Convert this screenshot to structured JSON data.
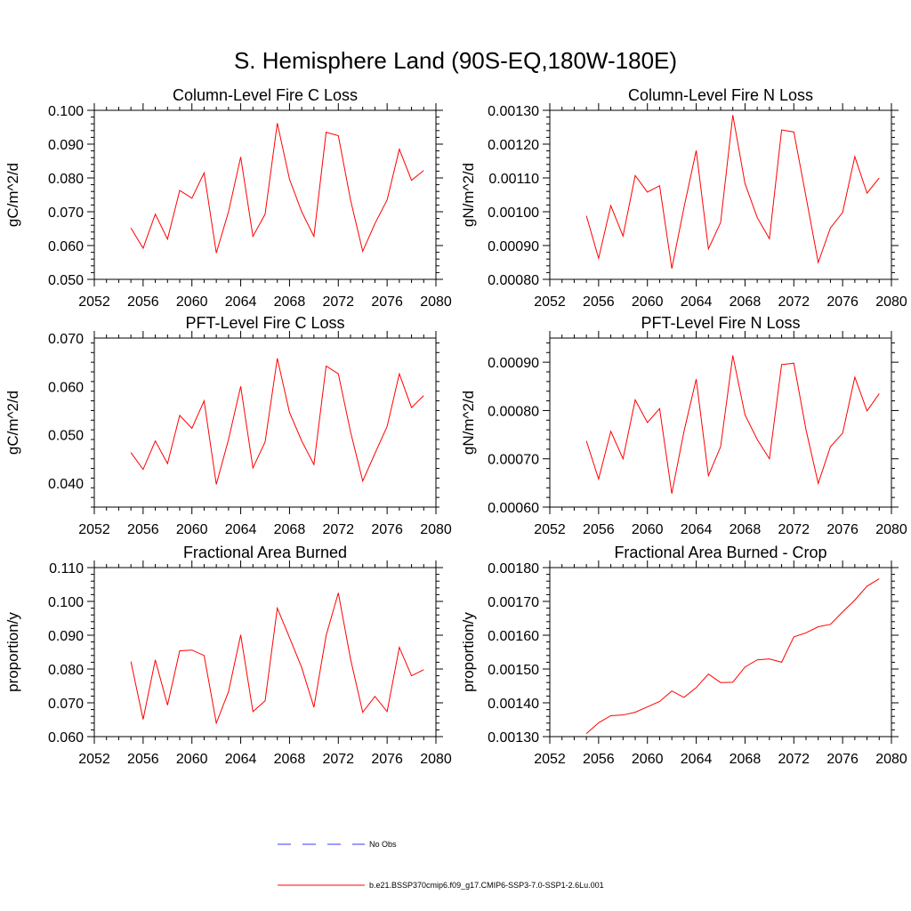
{
  "title": "S. Hemisphere Land (90S-EQ,180W-180E)",
  "colors": {
    "model": "#ff0000",
    "obs": "#3a3aff",
    "axis": "#000000"
  },
  "legend": [
    {
      "label": "No Obs",
      "style": "dashed",
      "color": "#3a3aff"
    },
    {
      "label": "b.e21.BSSP370cmip6.f09_g17.CMIP6-SSP3-7.0-SSP1-2.6Lu.001",
      "style": "solid",
      "color": "#ff0000"
    }
  ],
  "chart_data": [
    {
      "type": "line",
      "title": "Column-Level Fire C Loss",
      "ylabel": "gC/m^2/d",
      "xlim": [
        2052,
        2080
      ],
      "ylim": [
        0.05,
        0.1
      ],
      "xticks": [
        2052,
        2056,
        2060,
        2064,
        2068,
        2072,
        2076,
        2080
      ],
      "yticks": [
        0.05,
        0.06,
        0.07,
        0.08,
        0.09,
        0.1
      ],
      "ytick_labels": [
        "0.050",
        "0.060",
        "0.070",
        "0.080",
        "0.090",
        "0.100"
      ],
      "x": [
        2055,
        2056,
        2057,
        2058,
        2059,
        2060,
        2061,
        2062,
        2063,
        2064,
        2065,
        2066,
        2067,
        2068,
        2069,
        2070,
        2071,
        2072,
        2073,
        2074,
        2075,
        2076,
        2077,
        2078,
        2079
      ],
      "series": [
        {
          "values": [
            0.0652,
            0.0592,
            0.0693,
            0.0619,
            0.0763,
            0.074,
            0.0815,
            0.0578,
            0.07,
            0.0862,
            0.0627,
            0.0693,
            0.0962,
            0.0796,
            0.07,
            0.0627,
            0.0935,
            0.0925,
            0.0735,
            0.0583,
            0.0665,
            0.0735,
            0.0885,
            0.0793,
            0.0822
          ]
        }
      ]
    },
    {
      "type": "line",
      "title": "Column-Level Fire N Loss",
      "ylabel": "gN/m^2/d",
      "xlim": [
        2052,
        2080
      ],
      "ylim": [
        0.0008,
        0.0013
      ],
      "xticks": [
        2052,
        2056,
        2060,
        2064,
        2068,
        2072,
        2076,
        2080
      ],
      "yticks": [
        0.0008,
        0.0009,
        0.001,
        0.0011,
        0.0012,
        0.0013
      ],
      "ytick_labels": [
        "0.00080",
        "0.00090",
        "0.00100",
        "0.00110",
        "0.00120",
        "0.00130"
      ],
      "x": [
        2055,
        2056,
        2057,
        2058,
        2059,
        2060,
        2061,
        2062,
        2063,
        2064,
        2065,
        2066,
        2067,
        2068,
        2069,
        2070,
        2071,
        2072,
        2073,
        2074,
        2075,
        2076,
        2077,
        2078,
        2079
      ],
      "series": [
        {
          "values": [
            0.000988,
            0.000862,
            0.001018,
            0.000928,
            0.001107,
            0.001058,
            0.001077,
            0.000832,
            0.001013,
            0.001181,
            0.00089,
            0.000968,
            0.001286,
            0.001083,
            0.000983,
            0.00092,
            0.001242,
            0.001236,
            0.001044,
            0.00085,
            0.000952,
            0.000998,
            0.001163,
            0.001055,
            0.0011
          ]
        }
      ]
    },
    {
      "type": "line",
      "title": "PFT-Level Fire C Loss",
      "ylabel": "gC/m^2/d",
      "xlim": [
        2052,
        2080
      ],
      "ylim": [
        0.035,
        0.07
      ],
      "xticks": [
        2052,
        2056,
        2060,
        2064,
        2068,
        2072,
        2076,
        2080
      ],
      "yticks": [
        0.04,
        0.05,
        0.06,
        0.07
      ],
      "ytick_labels": [
        "0.040",
        "0.050",
        "0.060",
        "0.070"
      ],
      "x": [
        2055,
        2056,
        2057,
        2058,
        2059,
        2060,
        2061,
        2062,
        2063,
        2064,
        2065,
        2066,
        2067,
        2068,
        2069,
        2070,
        2071,
        2072,
        2073,
        2074,
        2075,
        2076,
        2077,
        2078,
        2079
      ],
      "series": [
        {
          "values": [
            0.0463,
            0.0428,
            0.0487,
            0.044,
            0.054,
            0.0513,
            0.057,
            0.0397,
            0.049,
            0.06,
            0.0431,
            0.0485,
            0.0658,
            0.0546,
            0.0487,
            0.0438,
            0.0642,
            0.0626,
            0.0506,
            0.0404,
            0.0461,
            0.0517,
            0.0626,
            0.0556,
            0.0581
          ]
        }
      ]
    },
    {
      "type": "line",
      "title": "PFT-Level Fire N Loss",
      "ylabel": "gN/m^2/d",
      "xlim": [
        2052,
        2080
      ],
      "ylim": [
        0.0006,
        0.00095
      ],
      "xticks": [
        2052,
        2056,
        2060,
        2064,
        2068,
        2072,
        2076,
        2080
      ],
      "yticks": [
        0.0006,
        0.0007,
        0.0008,
        0.0009
      ],
      "ytick_labels": [
        "0.00060",
        "0.00070",
        "0.00080",
        "0.00090"
      ],
      "x": [
        2055,
        2056,
        2057,
        2058,
        2059,
        2060,
        2061,
        2062,
        2063,
        2064,
        2065,
        2066,
        2067,
        2068,
        2069,
        2070,
        2071,
        2072,
        2073,
        2074,
        2075,
        2076,
        2077,
        2078,
        2079
      ],
      "series": [
        {
          "values": [
            0.000737,
            0.000658,
            0.000757,
            0.0007,
            0.000822,
            0.000775,
            0.000804,
            0.000628,
            0.000757,
            0.000865,
            0.000665,
            0.000725,
            0.000914,
            0.000791,
            0.00074,
            0.0007,
            0.000895,
            0.000898,
            0.00076,
            0.000649,
            0.000725,
            0.000753,
            0.000869,
            0.000799,
            0.000835
          ]
        }
      ]
    },
    {
      "type": "line",
      "title": "Fractional Area Burned",
      "ylabel": "proportion/y",
      "xlim": [
        2052,
        2080
      ],
      "ylim": [
        0.06,
        0.11
      ],
      "xticks": [
        2052,
        2056,
        2060,
        2064,
        2068,
        2072,
        2076,
        2080
      ],
      "yticks": [
        0.06,
        0.07,
        0.08,
        0.09,
        0.1,
        0.11
      ],
      "ytick_labels": [
        "0.060",
        "0.070",
        "0.080",
        "0.090",
        "0.100",
        "0.110"
      ],
      "x": [
        2055,
        2056,
        2057,
        2058,
        2059,
        2060,
        2061,
        2062,
        2063,
        2064,
        2065,
        2066,
        2067,
        2068,
        2069,
        2070,
        2071,
        2072,
        2073,
        2074,
        2075,
        2076,
        2077,
        2078,
        2079
      ],
      "series": [
        {
          "values": [
            0.0822,
            0.0651,
            0.0827,
            0.0693,
            0.0854,
            0.0856,
            0.084,
            0.064,
            0.0733,
            0.0901,
            0.0674,
            0.0706,
            0.098,
            0.0893,
            0.0804,
            0.0687,
            0.0899,
            0.1025,
            0.083,
            0.0672,
            0.0719,
            0.0674,
            0.0864,
            0.078,
            0.0798
          ]
        }
      ]
    },
    {
      "type": "line",
      "title": "Fractional Area Burned - Crop",
      "ylabel": "proportion/y",
      "xlim": [
        2052,
        2080
      ],
      "ylim": [
        0.0013,
        0.0018
      ],
      "xticks": [
        2052,
        2056,
        2060,
        2064,
        2068,
        2072,
        2076,
        2080
      ],
      "yticks": [
        0.0013,
        0.0014,
        0.0015,
        0.0016,
        0.0017,
        0.0018
      ],
      "ytick_labels": [
        "0.00130",
        "0.00140",
        "0.00150",
        "0.00160",
        "0.00170",
        "0.00180"
      ],
      "x": [
        2055,
        2056,
        2057,
        2058,
        2059,
        2060,
        2061,
        2062,
        2063,
        2064,
        2065,
        2066,
        2067,
        2068,
        2069,
        2070,
        2071,
        2072,
        2073,
        2074,
        2075,
        2076,
        2077,
        2078,
        2079
      ],
      "series": [
        {
          "values": [
            0.001309,
            0.001341,
            0.001362,
            0.001364,
            0.001372,
            0.001388,
            0.001404,
            0.001435,
            0.001416,
            0.001445,
            0.001485,
            0.00146,
            0.001461,
            0.001506,
            0.001527,
            0.00153,
            0.00152,
            0.001595,
            0.001607,
            0.001625,
            0.001632,
            0.001669,
            0.001704,
            0.001745,
            0.001767
          ]
        }
      ]
    }
  ]
}
